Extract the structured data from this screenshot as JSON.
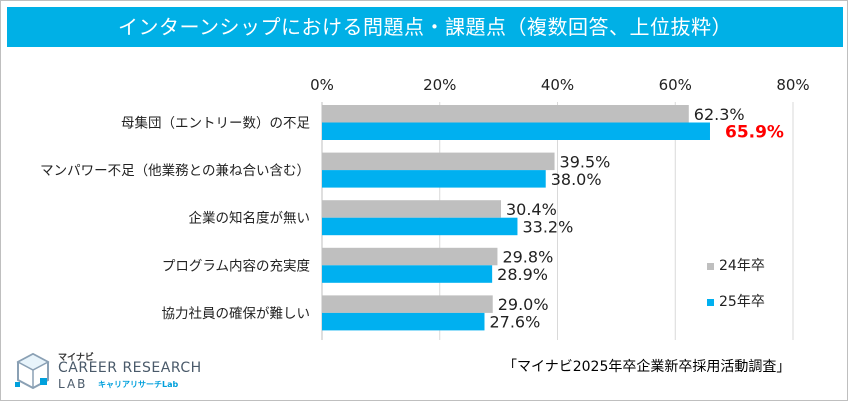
{
  "title": "インターンシップにおける問題点・課題点（複数回答、上位抜粋）",
  "source": "「マイナビ2025年卒企業新卒採用活動調査」",
  "logo": {
    "small": "マイナビ",
    "main": "CAREER RESEARCH",
    "lab": "LAB",
    "kana": "キャリアリサーチLab"
  },
  "colors": {
    "title_bg": "#00b0e6",
    "series_24": "#bfbfbf",
    "series_25": "#00b0f0",
    "highlight": "#ff0000",
    "grid": "#d9d9d9"
  },
  "chart_data": {
    "type": "bar",
    "orientation": "horizontal",
    "categories": [
      "母集団（エントリー数）の不足",
      "マンパワー不足（他業務との兼ね合い含む）",
      "企業の知名度が無い",
      "プログラム内容の充実度",
      "協力社員の確保が難しい"
    ],
    "series": [
      {
        "name": "24年卒",
        "values": [
          62.3,
          39.5,
          30.4,
          29.8,
          29.0
        ]
      },
      {
        "name": "25年卒",
        "values": [
          65.9,
          38.0,
          33.2,
          28.9,
          27.6
        ]
      }
    ],
    "data_labels": [
      [
        "62.3%",
        "39.5%",
        "30.4%",
        "29.8%",
        "29.0%"
      ],
      [
        "65.9%",
        "38.0%",
        "33.2%",
        "28.9%",
        "27.6%"
      ]
    ],
    "highlighted_label": {
      "series": 1,
      "index": 0
    },
    "xlim": [
      0,
      80
    ],
    "xticks": [
      "0%",
      "20%",
      "40%",
      "60%",
      "80%"
    ],
    "xtick_values": [
      0,
      20,
      40,
      60,
      80
    ],
    "grid": true,
    "axis_position": "top",
    "legend_position": "bottom-right"
  }
}
